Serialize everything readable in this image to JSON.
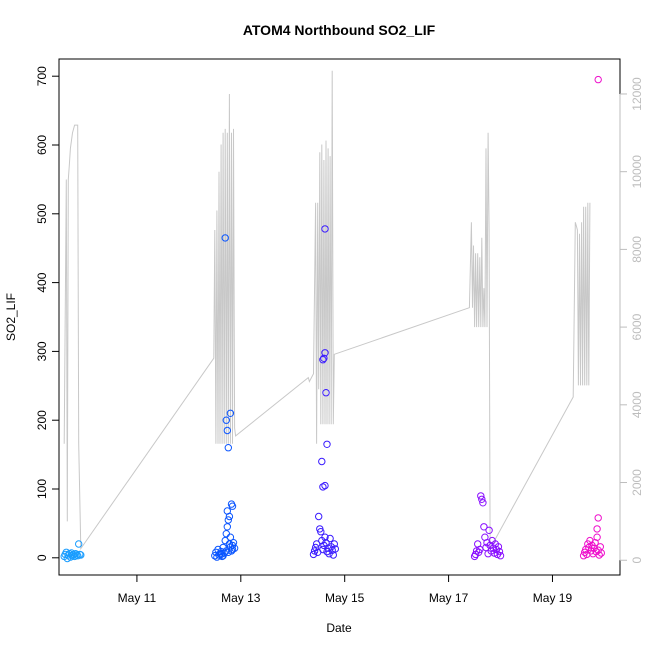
{
  "chart_data": {
    "type": "scatter",
    "title": "ATOM4 Northbound SO2_LIF",
    "xlabel": "Date",
    "ylabel": "SO2_LIF",
    "x_tick_labels": [
      {
        "value": 11,
        "label": "May 11"
      },
      {
        "value": 13,
        "label": "May 13"
      },
      {
        "value": 15,
        "label": "May 15"
      },
      {
        "value": 17,
        "label": "May 17"
      },
      {
        "value": 19,
        "label": "May 19"
      }
    ],
    "x_range": [
      9.5,
      20.3
    ],
    "y_ticks": [
      0,
      100,
      200,
      300,
      400,
      500,
      600,
      700
    ],
    "y_range": [
      -25,
      725
    ],
    "y2_ticks": [
      0,
      2000,
      4000,
      6000,
      8000,
      10000,
      12000
    ],
    "y2_range": [
      -380,
      12900
    ],
    "y2_color": "#bdbdbd",
    "grid": false,
    "legend": "none",
    "series": [
      {
        "color": "#1a9dff",
        "points": [
          [
            9.6,
            2
          ],
          [
            9.62,
            5
          ],
          [
            9.64,
            8
          ],
          [
            9.66,
            -1
          ],
          [
            9.68,
            4
          ],
          [
            9.7,
            6
          ],
          [
            9.72,
            1
          ],
          [
            9.74,
            7
          ],
          [
            9.76,
            3
          ],
          [
            9.78,
            5
          ],
          [
            9.8,
            2
          ],
          [
            9.82,
            6
          ],
          [
            9.84,
            4
          ],
          [
            9.86,
            3
          ],
          [
            9.88,
            20
          ],
          [
            9.9,
            5
          ],
          [
            9.92,
            4
          ]
        ]
      },
      {
        "color": "#0a55ff",
        "points": [
          [
            12.5,
            3
          ],
          [
            12.52,
            8
          ],
          [
            12.54,
            1
          ],
          [
            12.56,
            12
          ],
          [
            12.58,
            4
          ],
          [
            12.6,
            6
          ],
          [
            12.62,
            9
          ],
          [
            12.64,
            2
          ],
          [
            12.66,
            15
          ],
          [
            12.68,
            7
          ],
          [
            12.7,
            25
          ],
          [
            12.72,
            35
          ],
          [
            12.74,
            45
          ],
          [
            12.76,
            55
          ],
          [
            12.78,
            20
          ],
          [
            12.8,
            30
          ],
          [
            12.82,
            10
          ],
          [
            12.84,
            18
          ],
          [
            12.86,
            22
          ],
          [
            12.88,
            14
          ],
          [
            12.62,
            5
          ],
          [
            12.66,
            3
          ],
          [
            12.72,
            10
          ],
          [
            12.76,
            8
          ],
          [
            12.8,
            16
          ],
          [
            12.84,
            12
          ],
          [
            12.7,
            465
          ],
          [
            12.72,
            200
          ],
          [
            12.74,
            185
          ],
          [
            12.76,
            160
          ],
          [
            12.8,
            210
          ],
          [
            12.82,
            78
          ],
          [
            12.84,
            75
          ],
          [
            12.78,
            60
          ],
          [
            12.74,
            68
          ]
        ]
      },
      {
        "color": "#3a1cff",
        "points": [
          [
            14.4,
            5
          ],
          [
            14.42,
            10
          ],
          [
            14.44,
            15
          ],
          [
            14.46,
            20
          ],
          [
            14.48,
            8
          ],
          [
            14.5,
            60
          ],
          [
            14.52,
            42
          ],
          [
            14.54,
            38
          ],
          [
            14.56,
            25
          ],
          [
            14.58,
            12
          ],
          [
            14.6,
            18
          ],
          [
            14.62,
            30
          ],
          [
            14.64,
            22
          ],
          [
            14.66,
            9
          ],
          [
            14.68,
            14
          ],
          [
            14.7,
            6
          ],
          [
            14.72,
            28
          ],
          [
            14.74,
            16
          ],
          [
            14.76,
            11
          ],
          [
            14.78,
            4
          ],
          [
            14.8,
            20
          ],
          [
            14.82,
            13
          ],
          [
            14.56,
            140
          ],
          [
            14.58,
            288
          ],
          [
            14.6,
            290
          ],
          [
            14.62,
            298
          ],
          [
            14.64,
            240
          ],
          [
            14.66,
            165
          ],
          [
            14.58,
            103
          ],
          [
            14.62,
            105
          ],
          [
            14.62,
            478
          ]
        ]
      },
      {
        "color": "#8a10ff",
        "points": [
          [
            17.5,
            2
          ],
          [
            17.52,
            5
          ],
          [
            17.54,
            10
          ],
          [
            17.56,
            20
          ],
          [
            17.58,
            8
          ],
          [
            17.6,
            12
          ],
          [
            17.62,
            90
          ],
          [
            17.64,
            85
          ],
          [
            17.66,
            80
          ],
          [
            17.68,
            45
          ],
          [
            17.7,
            30
          ],
          [
            17.72,
            15
          ],
          [
            17.74,
            22
          ],
          [
            17.76,
            6
          ],
          [
            17.78,
            40
          ],
          [
            17.8,
            18
          ],
          [
            17.82,
            10
          ],
          [
            17.84,
            25
          ],
          [
            17.86,
            14
          ],
          [
            17.88,
            7
          ],
          [
            17.9,
            20
          ],
          [
            17.92,
            12
          ],
          [
            17.94,
            5
          ],
          [
            17.96,
            16
          ],
          [
            17.98,
            9
          ],
          [
            18.0,
            3
          ]
        ]
      },
      {
        "color": "#ee10cc",
        "points": [
          [
            19.6,
            3
          ],
          [
            19.62,
            8
          ],
          [
            19.64,
            12
          ],
          [
            19.66,
            5
          ],
          [
            19.68,
            20
          ],
          [
            19.7,
            15
          ],
          [
            19.72,
            25
          ],
          [
            19.74,
            10
          ],
          [
            19.76,
            18
          ],
          [
            19.78,
            6
          ],
          [
            19.8,
            14
          ],
          [
            19.82,
            22
          ],
          [
            19.84,
            9
          ],
          [
            19.86,
            30
          ],
          [
            19.88,
            11
          ],
          [
            19.9,
            4
          ],
          [
            19.92,
            16
          ],
          [
            19.94,
            7
          ],
          [
            19.86,
            42
          ],
          [
            19.88,
            58
          ],
          [
            19.88,
            695
          ]
        ]
      }
    ],
    "secondary_line": {
      "color": "#c8c8c8",
      "axis": "y2",
      "points": [
        [
          9.6,
          3000
        ],
        [
          9.64,
          9800
        ],
        [
          9.66,
          1000
        ],
        [
          9.68,
          9800
        ],
        [
          9.7,
          10200
        ],
        [
          9.72,
          10600
        ],
        [
          9.76,
          11000
        ],
        [
          9.8,
          11200
        ],
        [
          9.86,
          11200
        ],
        [
          9.88,
          3000
        ],
        [
          9.92,
          300
        ],
        [
          12.48,
          5200
        ],
        [
          12.5,
          8500
        ],
        [
          12.52,
          3000
        ],
        [
          12.54,
          9000
        ],
        [
          12.56,
          3000
        ],
        [
          12.58,
          10000
        ],
        [
          12.6,
          3000
        ],
        [
          12.62,
          10700
        ],
        [
          12.64,
          3000
        ],
        [
          12.66,
          11000
        ],
        [
          12.68,
          3000
        ],
        [
          12.7,
          11100
        ],
        [
          12.72,
          3000
        ],
        [
          12.74,
          11000
        ],
        [
          12.76,
          3000
        ],
        [
          12.78,
          12000
        ],
        [
          12.8,
          3000
        ],
        [
          12.82,
          11000
        ],
        [
          12.84,
          3000
        ],
        [
          12.86,
          11100
        ],
        [
          12.88,
          3400
        ],
        [
          12.9,
          3200
        ],
        [
          14.3,
          4700
        ],
        [
          14.32,
          4600
        ],
        [
          14.4,
          4800
        ],
        [
          14.44,
          9200
        ],
        [
          14.46,
          3000
        ],
        [
          14.48,
          9200
        ],
        [
          14.5,
          4400
        ],
        [
          14.52,
          10500
        ],
        [
          14.54,
          3500
        ],
        [
          14.56,
          10700
        ],
        [
          14.58,
          3500
        ],
        [
          14.6,
          10300
        ],
        [
          14.62,
          3500
        ],
        [
          14.64,
          10800
        ],
        [
          14.66,
          3500
        ],
        [
          14.68,
          10600
        ],
        [
          14.7,
          3500
        ],
        [
          14.72,
          10400
        ],
        [
          14.74,
          3500
        ],
        [
          14.76,
          12600
        ],
        [
          14.78,
          3500
        ],
        [
          14.8,
          5300
        ],
        [
          17.4,
          6500
        ],
        [
          17.44,
          8700
        ],
        [
          17.46,
          6500
        ],
        [
          17.48,
          8100
        ],
        [
          17.5,
          6000
        ],
        [
          17.52,
          7900
        ],
        [
          17.54,
          6000
        ],
        [
          17.56,
          7900
        ],
        [
          17.58,
          6000
        ],
        [
          17.6,
          7800
        ],
        [
          17.62,
          6000
        ],
        [
          17.64,
          8300
        ],
        [
          17.66,
          6000
        ],
        [
          17.68,
          7000
        ],
        [
          17.7,
          6000
        ],
        [
          17.72,
          10600
        ],
        [
          17.74,
          6000
        ],
        [
          17.76,
          11000
        ],
        [
          17.78,
          8500
        ],
        [
          17.8,
          300
        ],
        [
          19.4,
          4200
        ],
        [
          19.44,
          8700
        ],
        [
          19.46,
          8600
        ],
        [
          19.48,
          8500
        ],
        [
          19.5,
          4500
        ],
        [
          19.52,
          8400
        ],
        [
          19.54,
          4500
        ],
        [
          19.56,
          8700
        ],
        [
          19.58,
          4500
        ],
        [
          19.6,
          9100
        ],
        [
          19.62,
          4500
        ],
        [
          19.64,
          9100
        ],
        [
          19.66,
          4500
        ],
        [
          19.68,
          9200
        ],
        [
          19.7,
          4500
        ],
        [
          19.72,
          9200
        ]
      ]
    }
  }
}
